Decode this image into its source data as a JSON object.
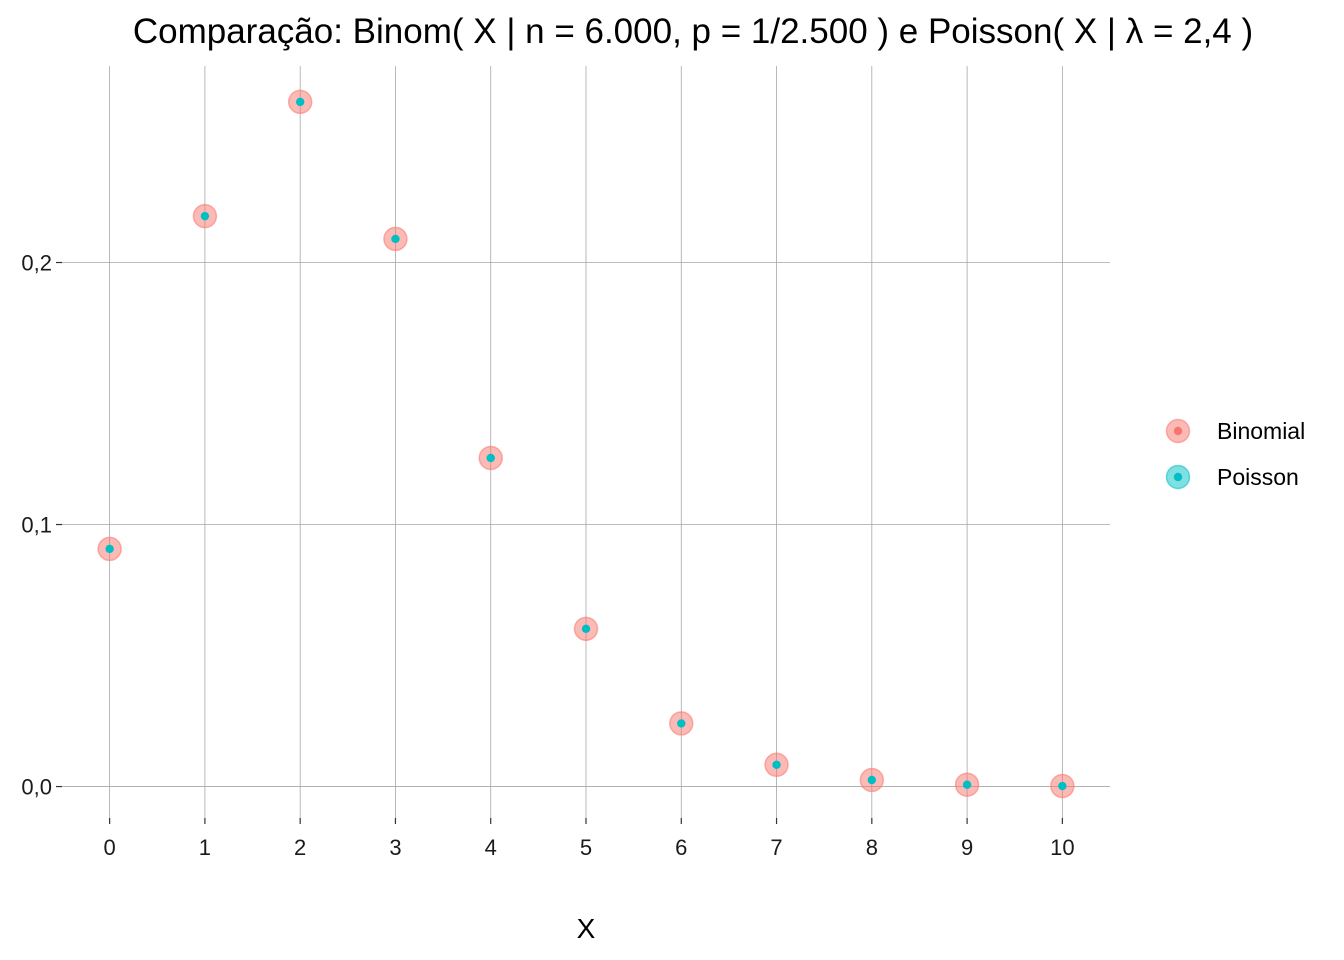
{
  "chart_data": {
    "type": "scatter",
    "title": "Comparação:  Binom( X | n = 6.000, p = 1/2.500 )  e  Poisson( X | λ = 2,4 )",
    "xlabel": "X",
    "ylabel": "",
    "x": [
      0,
      1,
      2,
      3,
      4,
      5,
      6,
      7,
      8,
      9,
      10
    ],
    "x_tick_labels": [
      "0",
      "1",
      "2",
      "3",
      "4",
      "5",
      "6",
      "7",
      "8",
      "9",
      "10"
    ],
    "y_ticks": [
      0.0,
      0.1,
      0.2
    ],
    "y_tick_labels": [
      "0,0",
      "0,1",
      "0,2"
    ],
    "xlim": [
      -0.5,
      10.5
    ],
    "ylim": [
      -0.012,
      0.275
    ],
    "grid": true,
    "legend_position": "right",
    "series": [
      {
        "name": "Binomial",
        "color": "#F8766D",
        "values": [
          0.0907,
          0.2177,
          0.2613,
          0.209,
          0.1254,
          0.0602,
          0.0241,
          0.0083,
          0.0025,
          0.0007,
          0.0002
        ]
      },
      {
        "name": "Poisson",
        "color": "#00BFC4",
        "values": [
          0.0907,
          0.2177,
          0.2613,
          0.209,
          0.1254,
          0.0602,
          0.0241,
          0.0083,
          0.0025,
          0.0007,
          0.0002
        ]
      }
    ]
  }
}
